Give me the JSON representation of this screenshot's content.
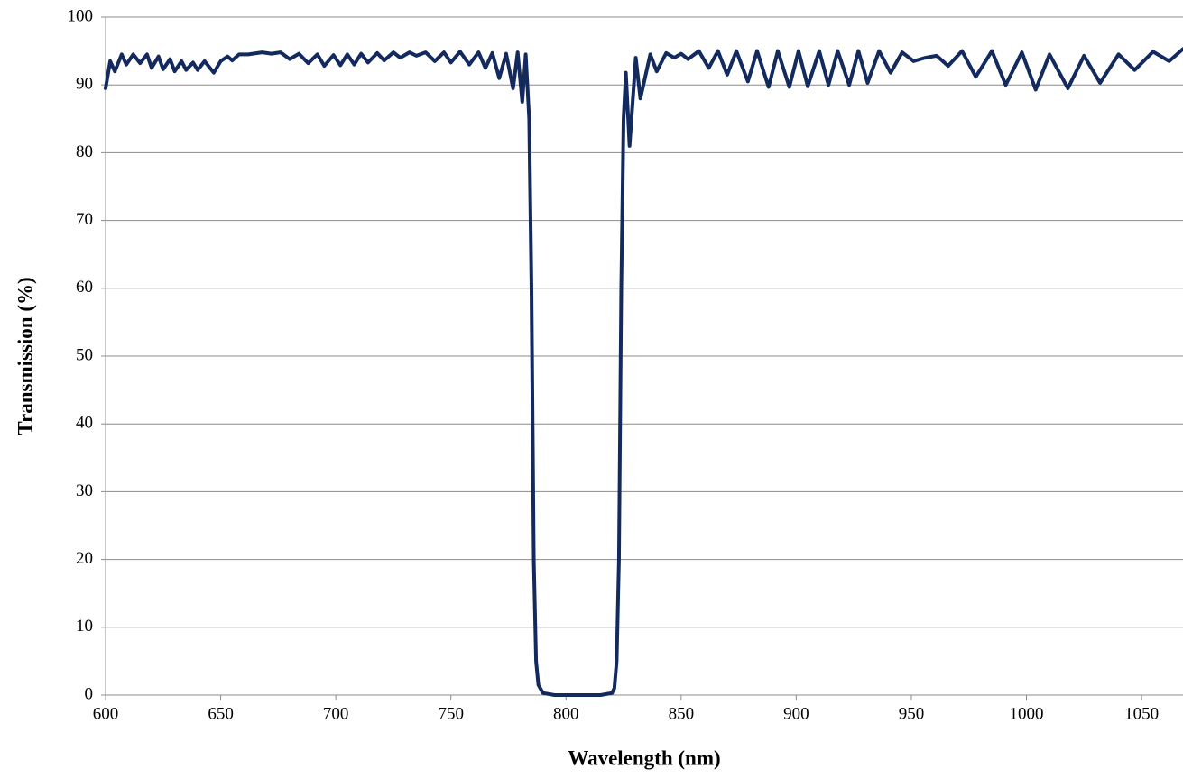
{
  "chart_data": {
    "type": "line",
    "x_label": "Wavelength (nm)",
    "y_label": "Transmission (%)",
    "xlim": [
      600,
      1068
    ],
    "ylim": [
      0,
      100
    ],
    "xticks": [
      600,
      650,
      700,
      750,
      800,
      850,
      900,
      950,
      1000,
      1050
    ],
    "yticks": [
      0,
      10,
      20,
      30,
      40,
      50,
      60,
      70,
      80,
      90,
      100
    ],
    "grid": true,
    "x": [
      600,
      602,
      604,
      607,
      609,
      612,
      615,
      618,
      620,
      623,
      625,
      628,
      630,
      633,
      635,
      638,
      640,
      643,
      647,
      650,
      653,
      655,
      658,
      662,
      668,
      672,
      676,
      680,
      684,
      688,
      692,
      695,
      699,
      702,
      705,
      708,
      711,
      714,
      718,
      721,
      725,
      728,
      732,
      735,
      739,
      743,
      747,
      750,
      754,
      758,
      762,
      765,
      768,
      771,
      774,
      777,
      779,
      781,
      782.5,
      784,
      785,
      786,
      787,
      788,
      790,
      795,
      815,
      820,
      821,
      822,
      823,
      824,
      825,
      826,
      827.6,
      830.3,
      832.3,
      836.6,
      839.4,
      843.5,
      847,
      850,
      853,
      857.7,
      862,
      866,
      870,
      874,
      879,
      883,
      888,
      892,
      897,
      901,
      905,
      910,
      914,
      918,
      923,
      927,
      931,
      936,
      941,
      946,
      951,
      956,
      961,
      966,
      972,
      978,
      985,
      991,
      998,
      1004,
      1010,
      1018,
      1025,
      1032,
      1040,
      1047,
      1055,
      1062,
      1068
    ],
    "series": [
      {
        "color": "#132a5e",
        "values": [
          89.5,
          93.5,
          92,
          94.5,
          93,
          94.5,
          93.2,
          94.5,
          92.5,
          94.2,
          92.3,
          93.8,
          92,
          93.5,
          92.2,
          93.3,
          92.2,
          93.5,
          91.8,
          93.5,
          94.2,
          93.6,
          94.5,
          94.5,
          94.8,
          94.6,
          94.8,
          93.8,
          94.6,
          93.2,
          94.5,
          92.8,
          94.4,
          92.9,
          94.5,
          93,
          94.6,
          93.3,
          94.7,
          93.6,
          94.8,
          94,
          94.8,
          94.3,
          94.8,
          93.5,
          94.8,
          93.3,
          94.9,
          93,
          94.8,
          92.5,
          94.7,
          91,
          94.6,
          89.5,
          94.8,
          87.5,
          94.5,
          85,
          60,
          20,
          5,
          1.5,
          0.3,
          0,
          0,
          0.3,
          1,
          5,
          20,
          60,
          85,
          91.8,
          81,
          94,
          88,
          94.5,
          92,
          94.7,
          94,
          94.6,
          93.8,
          95,
          92.5,
          95,
          91.5,
          95,
          90.5,
          95,
          89.7,
          95,
          89.7,
          95,
          89.8,
          95,
          90,
          95,
          90,
          95,
          90.3,
          95,
          91.8,
          94.8,
          93.5,
          94,
          94.3,
          92.8,
          95,
          91.2,
          95,
          90,
          94.8,
          89.3,
          94.5,
          89.5,
          94.3,
          90.3,
          94.5,
          92.2,
          94.9,
          93.5,
          95.3
        ]
      }
    ]
  }
}
